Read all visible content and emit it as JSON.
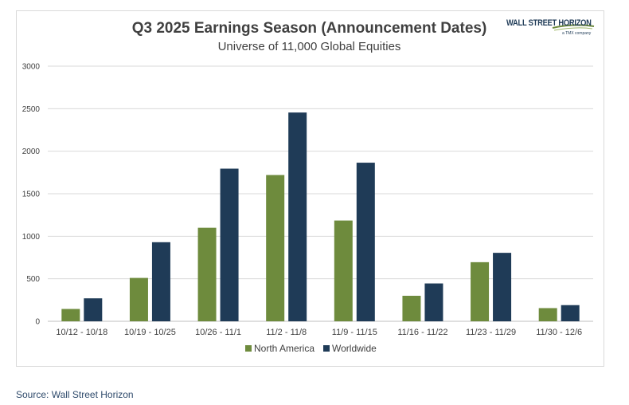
{
  "chart_data": {
    "type": "bar",
    "title": "Q3 2025 Earnings Season (Announcement Dates)",
    "subtitle": "Universe of 11,000 Global Equities",
    "xlabel": "",
    "ylabel": "",
    "ylim": [
      0,
      3000
    ],
    "yticks": [
      0,
      500,
      1000,
      1500,
      2000,
      2500,
      3000
    ],
    "grid": true,
    "legend_position": "bottom",
    "categories": [
      "10/12 - 10/18",
      "10/19 - 10/25",
      "10/26 - 11/1",
      "11/2 - 11/8",
      "11/9 - 11/15",
      "11/16 - 11/22",
      "11/23 - 11/29",
      "11/30 - 12/6"
    ],
    "series": [
      {
        "name": "North America",
        "color": "#6e8b3d",
        "values": [
          145,
          510,
          1100,
          1720,
          1185,
          300,
          695,
          155
        ]
      },
      {
        "name": "Worldwide",
        "color": "#1f3b57",
        "values": [
          270,
          930,
          1795,
          2455,
          1865,
          445,
          805,
          190
        ]
      }
    ]
  },
  "logo": {
    "text": "WALL STREET HORIZON",
    "subtext": "a TMX company"
  },
  "source": "Source: Wall Street Horizon"
}
